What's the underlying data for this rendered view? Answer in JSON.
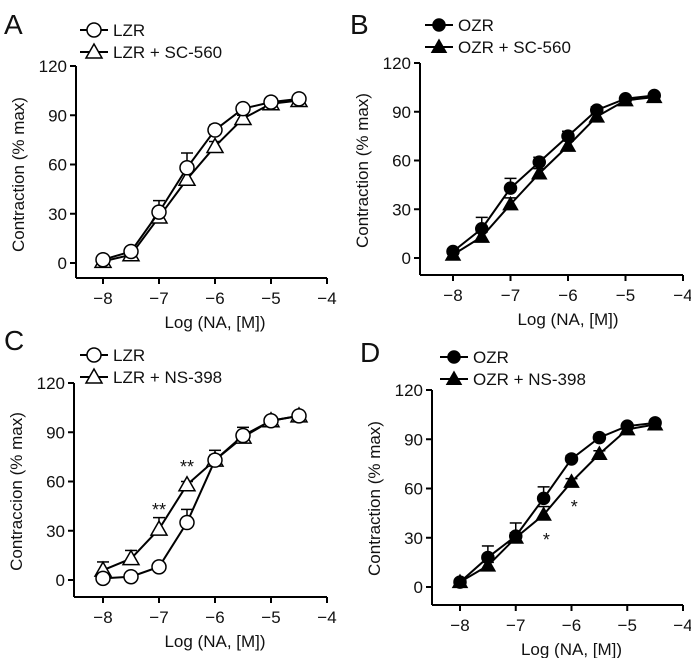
{
  "chart_data": [
    {
      "type": "line",
      "panel_label": "A",
      "xlabel": "Log (NA, [M])",
      "ylabel": "Contraction (% max)",
      "x": [
        -8,
        -7.5,
        -7,
        -6.5,
        -6,
        -5.5,
        -5,
        -4.5
      ],
      "xlim": [
        -8,
        -4
      ],
      "ylim": [
        0,
        120
      ],
      "xticks": [
        -8,
        -7,
        -6,
        -5,
        -4
      ],
      "xtick_labels": [
        "−8",
        "−7",
        "−6",
        "−5",
        "−4"
      ],
      "yticks": [
        0,
        30,
        60,
        90,
        120
      ],
      "ytick_labels": [
        "0",
        "30",
        "60",
        "90",
        "120"
      ],
      "legend_position": "top-left",
      "series": [
        {
          "name": "LZR",
          "marker": "open-circle",
          "values": [
            2,
            7,
            31,
            58,
            81,
            94,
            98,
            100
          ],
          "err": [
            1,
            2,
            7,
            9,
            3,
            2,
            1,
            1
          ]
        },
        {
          "name": "LZR + SC-560",
          "marker": "open-triangle",
          "values": [
            1,
            5,
            28,
            51,
            71,
            88,
            97,
            99
          ],
          "err": [
            1,
            1,
            5,
            5,
            3,
            2,
            1,
            1
          ]
        }
      ],
      "annotations": []
    },
    {
      "type": "line",
      "panel_label": "B",
      "xlabel": "Log (NA, [M])",
      "ylabel": "Contraction (% max)",
      "x": [
        -8,
        -7.5,
        -7,
        -6.5,
        -6,
        -5.5,
        -5,
        -4.5
      ],
      "xlim": [
        -8,
        -4
      ],
      "ylim": [
        0,
        120
      ],
      "xticks": [
        -8,
        -7,
        -6,
        -5,
        -4
      ],
      "xtick_labels": [
        "−8",
        "−7",
        "−6",
        "−5",
        "−4"
      ],
      "yticks": [
        0,
        30,
        60,
        90,
        120
      ],
      "ytick_labels": [
        "0",
        "30",
        "60",
        "90",
        "120"
      ],
      "legend_position": "top-left",
      "series": [
        {
          "name": "OZR",
          "marker": "filled-circle",
          "values": [
            4,
            18,
            43,
            59,
            75,
            91,
            98,
            100
          ],
          "err": [
            1,
            7,
            6,
            3,
            3,
            2,
            1,
            1
          ]
        },
        {
          "name": "OZR + SC-560",
          "marker": "filled-triangle",
          "values": [
            2,
            13,
            33,
            52,
            69,
            87,
            97,
            99
          ],
          "err": [
            1,
            3,
            4,
            3,
            3,
            2,
            1,
            1
          ]
        }
      ],
      "annotations": []
    },
    {
      "type": "line",
      "panel_label": "C",
      "xlabel": "Log (NA, [M])",
      "ylabel": "Contraccion (% max)",
      "x": [
        -8,
        -7.5,
        -7,
        -6.5,
        -6,
        -5.5,
        -5,
        -4.5
      ],
      "xlim": [
        -8,
        -4
      ],
      "ylim": [
        0,
        120
      ],
      "xticks": [
        -8,
        -7,
        -6,
        -5,
        -4
      ],
      "xtick_labels": [
        "−8",
        "−7",
        "−6",
        "−5",
        "−4"
      ],
      "yticks": [
        0,
        30,
        60,
        90,
        120
      ],
      "ytick_labels": [
        "0",
        "30",
        "60",
        "90",
        "120"
      ],
      "legend_position": "top-left",
      "series": [
        {
          "name": "LZR",
          "marker": "open-circle",
          "values": [
            1,
            2,
            8,
            35,
            73,
            88,
            97,
            100
          ],
          "err": [
            1,
            1,
            1,
            8,
            6,
            5,
            2,
            1
          ]
        },
        {
          "name": "LZR + NS-398",
          "marker": "open-triangle",
          "values": [
            6,
            13,
            31,
            58,
            73,
            87,
            97,
            100
          ],
          "err": [
            5,
            5,
            7,
            2,
            3,
            3,
            2,
            1
          ]
        }
      ],
      "annotations": [
        {
          "text": "**",
          "x": -7,
          "y": 44
        },
        {
          "text": "**",
          "x": -6.5,
          "y": 70
        }
      ]
    },
    {
      "type": "line",
      "panel_label": "D",
      "xlabel": "Log (NA, [M])",
      "ylabel": "Contraction (% max)",
      "x": [
        -8,
        -7.5,
        -7,
        -6.5,
        -6,
        -5.5,
        -5,
        -4.5
      ],
      "xlim": [
        -8,
        -4
      ],
      "ylim": [
        0,
        120
      ],
      "xticks": [
        -8,
        -7,
        -6,
        -5,
        -4
      ],
      "xtick_labels": [
        "−8",
        "−7",
        "−6",
        "−5",
        "−4"
      ],
      "yticks": [
        0,
        30,
        60,
        90,
        120
      ],
      "ytick_labels": [
        "0",
        "30",
        "60",
        "90",
        "120"
      ],
      "legend_position": "top-left",
      "series": [
        {
          "name": "OZR",
          "marker": "filled-circle",
          "values": [
            3,
            18,
            31,
            54,
            78,
            91,
            98,
            100
          ],
          "err": [
            1,
            7,
            8,
            7,
            2,
            2,
            1,
            1
          ]
        },
        {
          "name": "OZR + NS-398",
          "marker": "filled-triangle",
          "values": [
            3,
            13,
            30,
            44,
            64,
            81,
            96,
            99
          ],
          "err": [
            1,
            2,
            3,
            5,
            2,
            2,
            1,
            1
          ]
        }
      ],
      "annotations": [
        {
          "text": "*",
          "x": -6.45,
          "y": 30
        },
        {
          "text": "*",
          "x": -5.95,
          "y": 50
        }
      ]
    }
  ]
}
